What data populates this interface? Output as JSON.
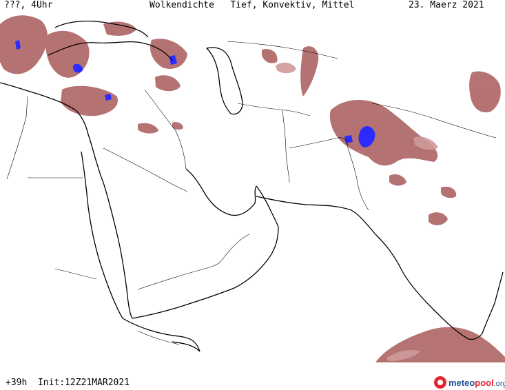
{
  "header": {
    "left": "???, 4Uhr",
    "center": "Wolkendichte   Tief, Konvektiv, Mittel",
    "right": "23. Maerz 2021"
  },
  "footer": {
    "run": "+39h  Init:12Z21MAR2021",
    "logo_part1": "meteo",
    "logo_part2": "pool",
    "logo_part3": ".org"
  },
  "colors": {
    "cloud": "#a85a5a",
    "cloud_light": "#cf9a9a",
    "cloud_core": "#2b2bff",
    "coast": "#000000",
    "border": "#000000",
    "background": "#ffffff",
    "logo_red": "#e3262f",
    "logo_blue": "#1f4f9a"
  }
}
